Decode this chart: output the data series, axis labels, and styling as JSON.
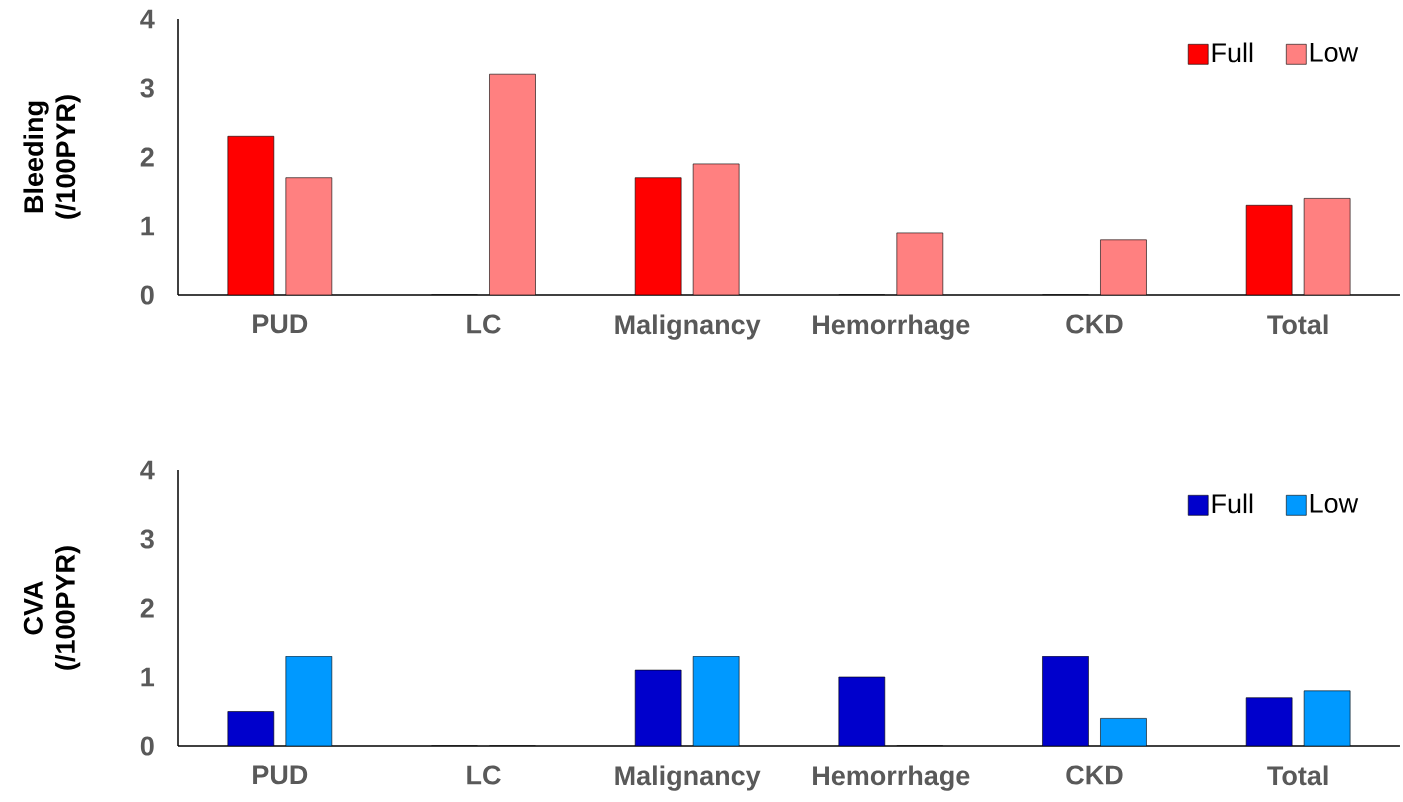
{
  "chart_data": [
    {
      "type": "bar",
      "ylabel": "Bleeding (/100PYR)",
      "categories": [
        "PUD",
        "LC",
        "Malignancy",
        "Hemorrhage",
        "CKD",
        "Total"
      ],
      "ylim": [
        0,
        4
      ],
      "yticks": [
        0,
        1,
        2,
        3,
        4
      ],
      "legend": "top right",
      "series": [
        {
          "name": "Full",
          "color": "#ff0000",
          "values": [
            2.3,
            0,
            1.7,
            0,
            0,
            1.3
          ]
        },
        {
          "name": "Low",
          "color": "#ff8080",
          "values": [
            1.7,
            3.2,
            1.9,
            0.9,
            0.8,
            1.4
          ]
        }
      ]
    },
    {
      "type": "bar",
      "ylabel": "CVA (/100PYR)",
      "categories": [
        "PUD",
        "LC",
        "Malignancy",
        "Hemorrhage",
        "CKD",
        "Total"
      ],
      "ylim": [
        0,
        4
      ],
      "yticks": [
        0,
        1,
        2,
        3,
        4
      ],
      "legend": "top right",
      "series": [
        {
          "name": "Full",
          "color": "#0000cc",
          "values": [
            0.5,
            0,
            1.1,
            1.0,
            1.3,
            0.7
          ]
        },
        {
          "name": "Low",
          "color": "#0099ff",
          "values": [
            1.3,
            0,
            1.3,
            0,
            0.4,
            0.8
          ]
        }
      ]
    }
  ]
}
